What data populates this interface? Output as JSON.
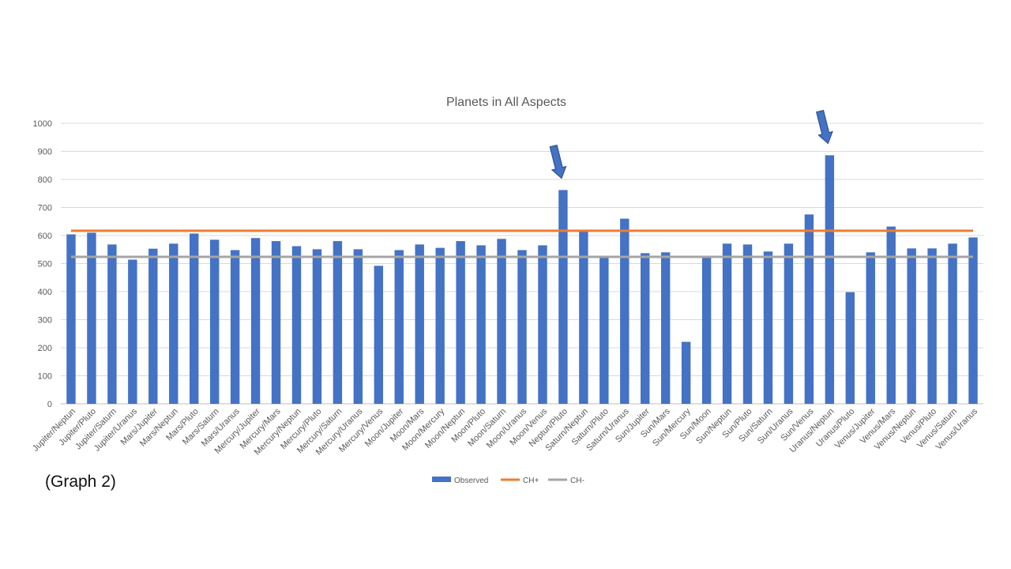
{
  "caption": "(Graph 2)",
  "chart_data": {
    "type": "bar",
    "title": "Planets in All Aspects",
    "xlabel": "",
    "ylabel": "",
    "ylim": [
      0,
      1000
    ],
    "yticks": [
      "0",
      "100",
      "200",
      "300",
      "400",
      "500",
      "600",
      "700",
      "800",
      "900",
      "1000"
    ],
    "grid": true,
    "legend_position": "bottom",
    "categories": [
      "Jupiter/Neptun",
      "Jupiter/Pluto",
      "Jupiter/Saturn",
      "Jupiter/Uranus",
      "Mars/Jupiter",
      "Mars/Neptun",
      "Mars/Pluto",
      "Mars/Saturn",
      "Mars/Uranus",
      "Mercury/Jupiter",
      "Mercury/Mars",
      "Mercury/Neptun",
      "Mercury/Pluto",
      "Mercury/Saturn",
      "Mercury/Uranus",
      "Mercury/Venus",
      "Moon/Jupiter",
      "Moon/Mars",
      "Moon/Mercury",
      "Moon/Neptun",
      "Moon/Pluto",
      "Moon/Saturn",
      "Moon/Uranus",
      "Moon/Venus",
      "Neptun/Pluto",
      "Saturn/Neptun",
      "Saturn/Pluto",
      "Saturn/Uranus",
      "Sun/Jupiter",
      "Sun/Mars",
      "Sun/Mercury",
      "Sun/Moon",
      "Sun/Neptun",
      "Sun/Pluto",
      "Sun/Saturn",
      "Sun/Uranus",
      "Sun/Venus",
      "Uranus/Neptun",
      "Uranus/Pluto",
      "Venus/Jupiter",
      "Venus/Mars",
      "Venus/Neptun",
      "Venus/Pluto",
      "Venus/Saturn",
      "Venus/Uranus"
    ],
    "series": [
      {
        "name": "Observed",
        "kind": "bar",
        "color": "#4472C4",
        "values": [
          604,
          610,
          568,
          514,
          553,
          571,
          607,
          585,
          548,
          591,
          580,
          562,
          551,
          580,
          551,
          492,
          548,
          568,
          556,
          580,
          565,
          588,
          548,
          565,
          762,
          614,
          521,
          660,
          537,
          540,
          221,
          521,
          571,
          568,
          543,
          571,
          675,
          886,
          398,
          540,
          632,
          554,
          554,
          571,
          593
        ]
      },
      {
        "name": "CH+",
        "kind": "line",
        "color": "#ED7D31",
        "value": 617
      },
      {
        "name": "CH-",
        "kind": "line",
        "color": "#A5A5A5",
        "value": 524
      }
    ],
    "annotations": [
      {
        "kind": "arrow",
        "target": "Neptun/Pluto",
        "color": "#4472C4"
      },
      {
        "kind": "arrow",
        "target": "Uranus/Neptun",
        "color": "#4472C4"
      }
    ]
  }
}
